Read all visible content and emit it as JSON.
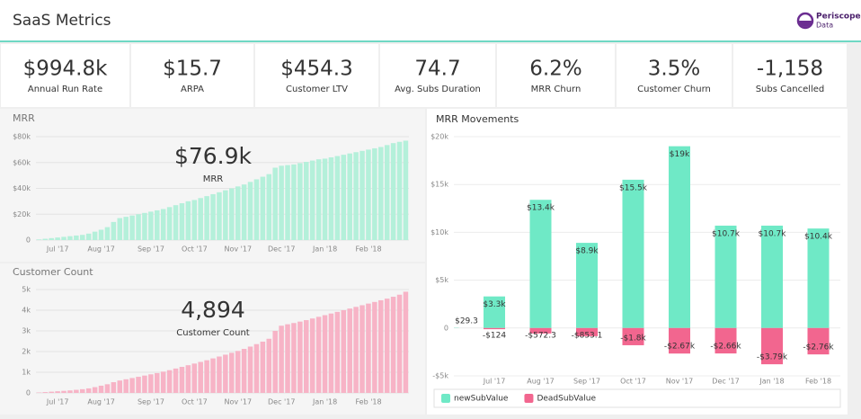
{
  "header": {
    "title": "SaaS Metrics",
    "logo": [
      "Periscope",
      "Data"
    ]
  },
  "kpis": [
    {
      "value": "$994.8k",
      "label": "Annual Run Rate"
    },
    {
      "value": "$15.7",
      "label": "ARPA"
    },
    {
      "value": "$454.3",
      "label": "Customer LTV"
    },
    {
      "value": "74.7",
      "label": "Avg. Subs Duration"
    },
    {
      "value": "6.2%",
      "label": "MRR Churn"
    },
    {
      "value": "3.5%",
      "label": "Customer Churn"
    },
    {
      "value": "-1,158",
      "label": "Subs Cancelled"
    }
  ],
  "chart_data": [
    {
      "type": "bar",
      "title": "MRR",
      "headline": "$76.9k",
      "headline_label": "MRR",
      "color": "#b4f0da",
      "grid": true,
      "categories": [
        null,
        null,
        null,
        "Jul '17",
        null,
        null,
        null,
        null,
        null,
        null,
        "Aug '17",
        null,
        null,
        null,
        null,
        null,
        null,
        null,
        "Sep '17",
        null,
        null,
        null,
        null,
        null,
        null,
        "Oct '17",
        null,
        null,
        null,
        null,
        null,
        null,
        "Nov '17",
        null,
        null,
        null,
        null,
        null,
        null,
        "Dec '17",
        null,
        null,
        null,
        null,
        null,
        null,
        "Jan '18",
        null,
        null,
        null,
        null,
        null,
        null,
        "Feb '18",
        null,
        null,
        null,
        null,
        null,
        null
      ],
      "values": [
        500,
        1000,
        1500,
        2000,
        2500,
        3000,
        3500,
        4000,
        5000,
        6500,
        8000,
        10000,
        14000,
        17000,
        18000,
        19000,
        20000,
        21000,
        22000,
        23000,
        24000,
        25500,
        27000,
        28500,
        30000,
        31000,
        32500,
        34000,
        35500,
        37000,
        38500,
        40000,
        41500,
        43000,
        45000,
        47000,
        49000,
        51000,
        56000,
        57500,
        58000,
        58500,
        59500,
        60500,
        61500,
        62500,
        63000,
        64000,
        65000,
        66000,
        67000,
        68000,
        69000,
        70000,
        71000,
        72000,
        73500,
        75000,
        76000,
        76900
      ],
      "ylim": [
        0,
        80000
      ],
      "yticks": [
        0,
        {
          "value": 20000,
          "label": "$20k"
        },
        {
          "value": 40000,
          "label": "$40k"
        },
        {
          "value": 60000,
          "label": "$60k"
        },
        {
          "value": 80000,
          "label": "$80k"
        }
      ]
    },
    {
      "type": "bar",
      "title": "Customer Count",
      "headline": "4,894",
      "headline_label": "Customer Count",
      "color": "#f7b3c6",
      "grid": true,
      "categories": [
        null,
        null,
        null,
        "Jul '17",
        null,
        null,
        null,
        null,
        null,
        null,
        "Aug '17",
        null,
        null,
        null,
        null,
        null,
        null,
        null,
        "Sep '17",
        null,
        null,
        null,
        null,
        null,
        null,
        "Oct '17",
        null,
        null,
        null,
        null,
        null,
        null,
        "Nov '17",
        null,
        null,
        null,
        null,
        null,
        null,
        "Dec '17",
        null,
        null,
        null,
        null,
        null,
        null,
        "Jan '18",
        null,
        null,
        null,
        null,
        null,
        null,
        "Feb '18",
        null,
        null,
        null,
        null,
        null,
        null
      ],
      "values": [
        20,
        40,
        60,
        80,
        100,
        120,
        150,
        180,
        220,
        280,
        350,
        420,
        520,
        600,
        660,
        720,
        780,
        840,
        900,
        960,
        1030,
        1100,
        1180,
        1260,
        1340,
        1420,
        1500,
        1580,
        1670,
        1760,
        1850,
        1940,
        2030,
        2130,
        2240,
        2360,
        2480,
        2620,
        3000,
        3250,
        3320,
        3380,
        3450,
        3520,
        3600,
        3680,
        3760,
        3840,
        3920,
        4000,
        4080,
        4160,
        4240,
        4320,
        4400,
        4480,
        4560,
        4650,
        4750,
        4894
      ],
      "ylim": [
        0,
        5000
      ],
      "yticks": [
        0,
        {
          "value": 1000,
          "label": "1k"
        },
        {
          "value": 2000,
          "label": "2k"
        },
        {
          "value": 3000,
          "label": "3k"
        },
        {
          "value": 4000,
          "label": "4k"
        },
        {
          "value": 5000,
          "label": "5k"
        }
      ]
    },
    {
      "type": "stacked_bar",
      "title": "MRR Movements",
      "grid": true,
      "legend": "bottom-left",
      "categories": [
        null,
        "Jul '17",
        "Aug '17",
        "Sep '17",
        "Oct '17",
        "Nov '17",
        "Dec '17",
        "Jan '18",
        "Feb '18"
      ],
      "series": [
        {
          "name": "newSubValue",
          "color": "#6fe9c6",
          "values": [
            29.3,
            3300,
            13400,
            8900,
            15500,
            19000,
            10700,
            10700,
            10400
          ],
          "value_labels": [
            "$29.3",
            "$3.3k",
            "$13.4k",
            "$8.9k",
            "$15.5k",
            "$19k",
            "$10.7k",
            "$10.7k",
            "$10.4k"
          ]
        },
        {
          "name": "DeadSubValue",
          "color": "#f2668f",
          "values": [
            null,
            -124,
            -572.3,
            -853.1,
            -1800,
            -2670,
            -2660,
            -3790,
            -2760
          ],
          "value_labels": [
            null,
            "-$124",
            "-$572.3",
            "-$853.1",
            "-$1.8k",
            "-$2.67k",
            "-$2.66k",
            "-$3.79k",
            "-$2.76k"
          ]
        }
      ],
      "ylim": [
        -5000,
        20000
      ],
      "yticks": [
        {
          "value": -5000,
          "label": "-$5k"
        },
        0,
        {
          "value": 5000,
          "label": "$5k"
        },
        {
          "value": 10000,
          "label": "$10k"
        },
        {
          "value": 15000,
          "label": "$15k"
        },
        {
          "value": 20000,
          "label": "$20k"
        }
      ]
    }
  ]
}
